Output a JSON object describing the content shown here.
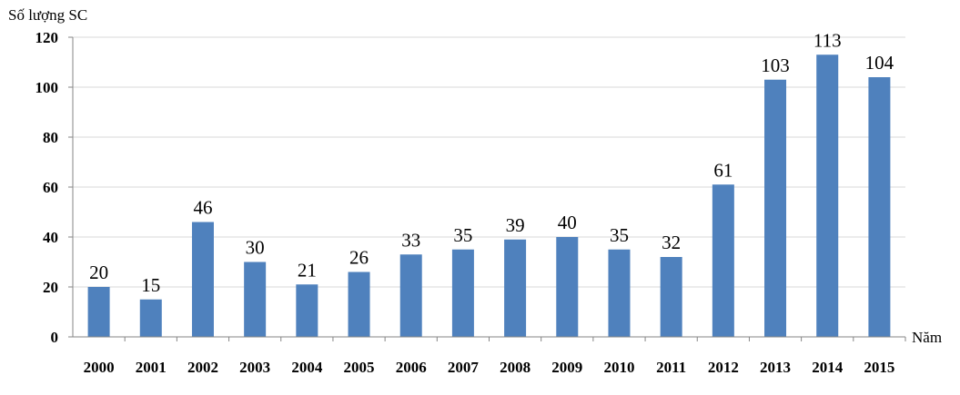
{
  "chart_data": {
    "type": "bar",
    "title": "",
    "ylabel": "Số lượng SC",
    "xlabel": "Năm",
    "categories": [
      "2000",
      "2001",
      "2002",
      "2003",
      "2004",
      "2005",
      "2006",
      "2007",
      "2008",
      "2009",
      "2010",
      "2011",
      "2012",
      "2013",
      "2014",
      "2015"
    ],
    "values": [
      20,
      15,
      46,
      30,
      21,
      26,
      33,
      35,
      39,
      40,
      35,
      32,
      61,
      103,
      113,
      104
    ],
    "ylim": [
      0,
      120
    ],
    "yticks": [
      0,
      20,
      40,
      60,
      80,
      100,
      120
    ],
    "grid": true,
    "legend": "none",
    "bar_color": "#4f81bd",
    "grid_color": "#d9d9d9",
    "axis_color": "#868686"
  }
}
